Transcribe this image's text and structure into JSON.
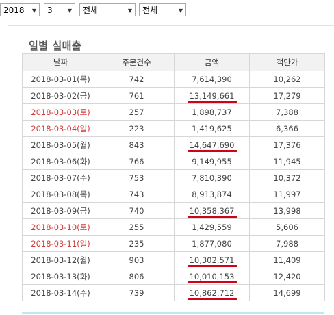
{
  "filters": {
    "year": "2018",
    "month": "3",
    "filter1": "전체",
    "filter2": "전체"
  },
  "title": "일별 실매출",
  "table": {
    "headers": [
      "날짜",
      "주문건수",
      "금액",
      "객단가"
    ],
    "rows": [
      {
        "date": "2018-03-01(목)",
        "orders": "742",
        "amount": "7,614,390",
        "avg": "10,262",
        "weekend": false,
        "underline": false
      },
      {
        "date": "2018-03-02(금)",
        "orders": "761",
        "amount": "13,149,661",
        "avg": "17,279",
        "weekend": false,
        "underline": true
      },
      {
        "date": "2018-03-03(토)",
        "orders": "257",
        "amount": "1,898,737",
        "avg": "7,388",
        "weekend": true,
        "underline": false
      },
      {
        "date": "2018-03-04(일)",
        "orders": "223",
        "amount": "1,419,625",
        "avg": "6,366",
        "weekend": true,
        "underline": false
      },
      {
        "date": "2018-03-05(월)",
        "orders": "843",
        "amount": "14,647,690",
        "avg": "17,376",
        "weekend": false,
        "underline": true
      },
      {
        "date": "2018-03-06(화)",
        "orders": "766",
        "amount": "9,149,955",
        "avg": "11,945",
        "weekend": false,
        "underline": false
      },
      {
        "date": "2018-03-07(수)",
        "orders": "753",
        "amount": "7,810,390",
        "avg": "10,372",
        "weekend": false,
        "underline": false
      },
      {
        "date": "2018-03-08(목)",
        "orders": "743",
        "amount": "8,913,874",
        "avg": "11,997",
        "weekend": false,
        "underline": false
      },
      {
        "date": "2018-03-09(금)",
        "orders": "740",
        "amount": "10,358,367",
        "avg": "13,998",
        "weekend": false,
        "underline": true
      },
      {
        "date": "2018-03-10(토)",
        "orders": "255",
        "amount": "1,429,559",
        "avg": "5,606",
        "weekend": true,
        "underline": false
      },
      {
        "date": "2018-03-11(일)",
        "orders": "235",
        "amount": "1,877,080",
        "avg": "7,988",
        "weekend": true,
        "underline": false
      },
      {
        "date": "2018-03-12(월)",
        "orders": "903",
        "amount": "10,302,571",
        "avg": "11,409",
        "weekend": false,
        "underline": true
      },
      {
        "date": "2018-03-13(화)",
        "orders": "806",
        "amount": "10,010,153",
        "avg": "12,420",
        "weekend": false,
        "underline": true
      },
      {
        "date": "2018-03-14(수)",
        "orders": "739",
        "amount": "10,862,712",
        "avg": "14,699",
        "weekend": false,
        "underline": true
      }
    ]
  },
  "colors": {
    "weekend_text": "#d23b3b",
    "underline_mark": "#d0021b",
    "header_bg": "#f2f2f2"
  }
}
